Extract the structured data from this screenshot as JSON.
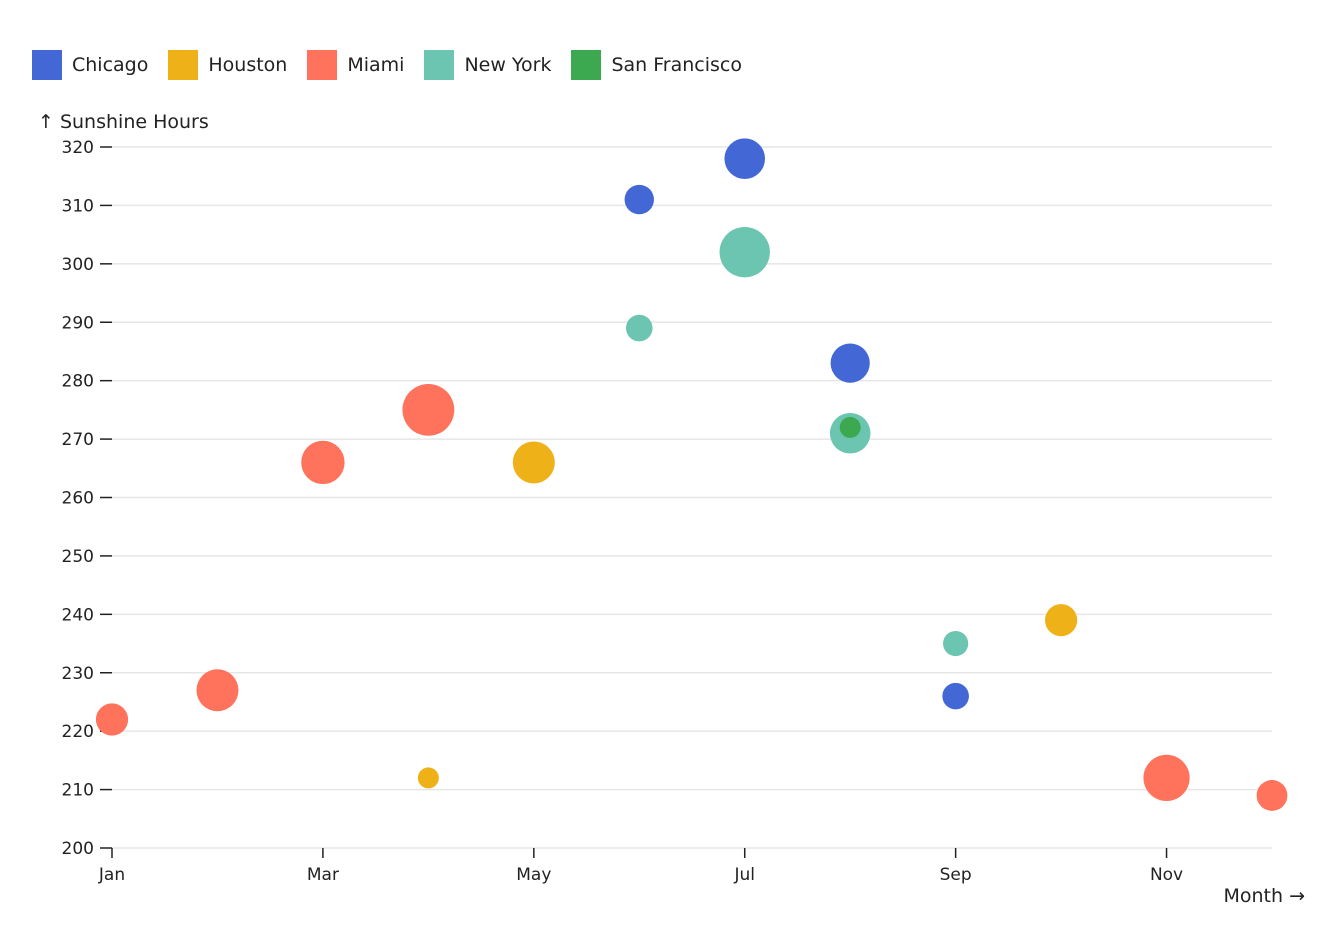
{
  "chart_data": {
    "type": "scatter",
    "title": "",
    "xlabel": "Month →",
    "ylabel": "↑ Sunshine Hours",
    "x_ticks": [
      "Jan",
      "Mar",
      "May",
      "Jul",
      "Sep",
      "Nov"
    ],
    "x_range": [
      "Jan",
      "Dec"
    ],
    "ylim": [
      200,
      320
    ],
    "y_ticks": [
      200,
      210,
      220,
      230,
      240,
      250,
      260,
      270,
      280,
      290,
      300,
      310,
      320
    ],
    "grid": true,
    "legend_position": "top-left",
    "series": [
      {
        "name": "Chicago",
        "color": "#4367d4",
        "points": [
          {
            "month": "Jun",
            "hours": 311,
            "size": 2.1
          },
          {
            "month": "Jul",
            "hours": 318,
            "size": 2.9
          },
          {
            "month": "Aug",
            "hours": 283,
            "size": 2.8
          },
          {
            "month": "Sep",
            "hours": 226,
            "size": 1.9
          }
        ]
      },
      {
        "name": "Houston",
        "color": "#efb118",
        "points": [
          {
            "month": "Apr",
            "hours": 212,
            "size": 1.5
          },
          {
            "month": "May",
            "hours": 266,
            "size": 3.0
          },
          {
            "month": "Oct",
            "hours": 239,
            "size": 2.3
          }
        ]
      },
      {
        "name": "Miami",
        "color": "#ff725c",
        "points": [
          {
            "month": "Jan",
            "hours": 222,
            "size": 2.3
          },
          {
            "month": "Feb",
            "hours": 227,
            "size": 3.0
          },
          {
            "month": "Mar",
            "hours": 266,
            "size": 3.1
          },
          {
            "month": "Apr",
            "hours": 275,
            "size": 3.7
          },
          {
            "month": "Nov",
            "hours": 212,
            "size": 3.3
          },
          {
            "month": "Dec",
            "hours": 209,
            "size": 2.2
          }
        ]
      },
      {
        "name": "New York",
        "color": "#6cc5b0",
        "points": [
          {
            "month": "Jun",
            "hours": 289,
            "size": 1.9
          },
          {
            "month": "Jul",
            "hours": 302,
            "size": 3.6
          },
          {
            "month": "Aug",
            "hours": 271,
            "size": 2.9
          },
          {
            "month": "Sep",
            "hours": 235,
            "size": 1.8
          }
        ]
      },
      {
        "name": "San Francisco",
        "color": "#3ca951",
        "points": [
          {
            "month": "Aug",
            "hours": 272,
            "size": 1.5
          }
        ]
      }
    ]
  }
}
